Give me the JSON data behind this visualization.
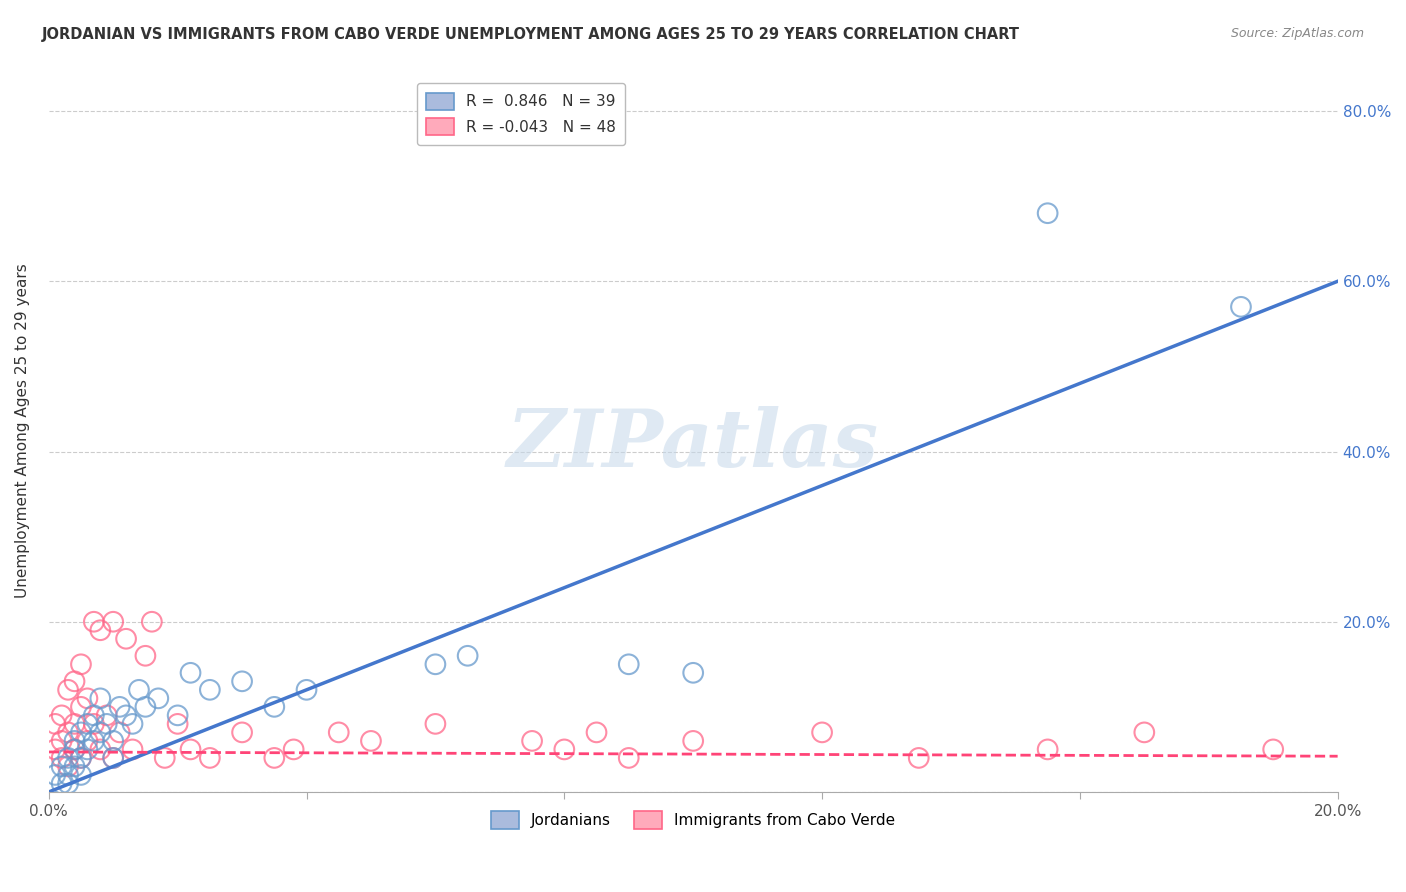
{
  "title": "JORDANIAN VS IMMIGRANTS FROM CABO VERDE UNEMPLOYMENT AMONG AGES 25 TO 29 YEARS CORRELATION CHART",
  "source": "Source: ZipAtlas.com",
  "ylabel": "Unemployment Among Ages 25 to 29 years",
  "xlim": [
    0.0,
    0.2
  ],
  "ylim": [
    0.0,
    0.85
  ],
  "legend1_label": "R =  0.846   N = 39",
  "legend2_label": "R = -0.043   N = 48",
  "legend1_color_face": "#aabbdd",
  "legend1_color_edge": "#6699cc",
  "legend2_color_face": "#ffaabb",
  "legend2_color_edge": "#ff6688",
  "watermark": "ZIPatlas",
  "blue_line": [
    0.0,
    0.0,
    0.2,
    0.6
  ],
  "pink_line": [
    0.0,
    0.047,
    0.2,
    0.042
  ],
  "jordanians_x": [
    0.001,
    0.002,
    0.002,
    0.003,
    0.003,
    0.003,
    0.004,
    0.004,
    0.004,
    0.005,
    0.005,
    0.005,
    0.006,
    0.006,
    0.007,
    0.007,
    0.008,
    0.008,
    0.009,
    0.01,
    0.01,
    0.011,
    0.012,
    0.013,
    0.014,
    0.015,
    0.017,
    0.02,
    0.022,
    0.025,
    0.03,
    0.035,
    0.04,
    0.06,
    0.065,
    0.09,
    0.1,
    0.155,
    0.185
  ],
  "jordanians_y": [
    0.02,
    0.01,
    0.03,
    0.04,
    0.02,
    0.01,
    0.05,
    0.03,
    0.06,
    0.04,
    0.02,
    0.07,
    0.05,
    0.08,
    0.06,
    0.09,
    0.07,
    0.11,
    0.08,
    0.06,
    0.04,
    0.1,
    0.09,
    0.08,
    0.12,
    0.1,
    0.11,
    0.09,
    0.14,
    0.12,
    0.13,
    0.1,
    0.12,
    0.15,
    0.16,
    0.15,
    0.14,
    0.68,
    0.57
  ],
  "cabo_verde_x": [
    0.001,
    0.001,
    0.002,
    0.002,
    0.002,
    0.003,
    0.003,
    0.003,
    0.004,
    0.004,
    0.004,
    0.005,
    0.005,
    0.005,
    0.006,
    0.006,
    0.007,
    0.007,
    0.008,
    0.008,
    0.009,
    0.01,
    0.01,
    0.011,
    0.012,
    0.013,
    0.015,
    0.016,
    0.018,
    0.02,
    0.022,
    0.025,
    0.03,
    0.035,
    0.038,
    0.045,
    0.05,
    0.06,
    0.075,
    0.08,
    0.085,
    0.09,
    0.1,
    0.12,
    0.135,
    0.155,
    0.17,
    0.19
  ],
  "cabo_verde_y": [
    0.05,
    0.08,
    0.04,
    0.06,
    0.09,
    0.03,
    0.07,
    0.12,
    0.05,
    0.08,
    0.13,
    0.04,
    0.1,
    0.15,
    0.06,
    0.11,
    0.08,
    0.2,
    0.05,
    0.19,
    0.09,
    0.04,
    0.2,
    0.07,
    0.18,
    0.05,
    0.16,
    0.2,
    0.04,
    0.08,
    0.05,
    0.04,
    0.07,
    0.04,
    0.05,
    0.07,
    0.06,
    0.08,
    0.06,
    0.05,
    0.07,
    0.04,
    0.06,
    0.07,
    0.04,
    0.05,
    0.07,
    0.05
  ]
}
